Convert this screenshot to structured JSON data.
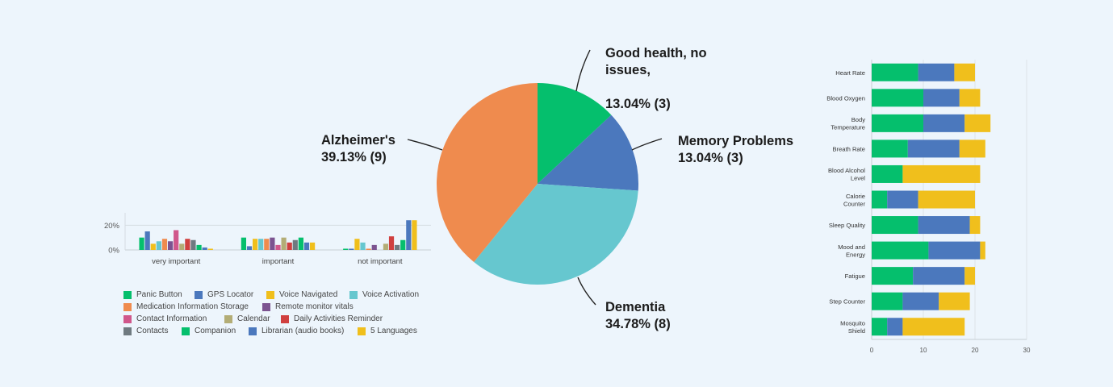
{
  "chart_data": [
    {
      "type": "pie",
      "slices": [
        {
          "label_lines": [
            "Good health, no",
            "issues,",
            "",
            "13.04% (3)"
          ],
          "value": 13.04,
          "count": 3,
          "color": "#05bf6d"
        },
        {
          "label_lines": [
            "Memory Problems",
            "13.04% (3)"
          ],
          "value": 13.04,
          "count": 3,
          "color": "#4b78bd"
        },
        {
          "label_lines": [
            "Dementia",
            "34.78% (8)"
          ],
          "value": 34.78,
          "count": 8,
          "color": "#66c7cf"
        },
        {
          "label_lines": [
            "Alzheimer's",
            "39.13% (9)"
          ],
          "value": 39.13,
          "count": 9,
          "color": "#ef8b4e"
        }
      ]
    },
    {
      "type": "bar",
      "categories": [
        "very important",
        "important",
        "not important"
      ],
      "ytick_labels": [
        "20%",
        "0%"
      ],
      "ylim": [
        0,
        30
      ],
      "series": [
        {
          "name": "Panic Button",
          "color": "#05bf6d",
          "values": [
            10,
            10,
            1
          ]
        },
        {
          "name": "GPS Locator",
          "color": "#4b78bd",
          "values": [
            15,
            3,
            1
          ]
        },
        {
          "name": "Voice Navigated",
          "color": "#f0bf1c",
          "values": [
            5,
            9,
            9
          ]
        },
        {
          "name": "Voice Activation",
          "color": "#66c7cf",
          "values": [
            7,
            9,
            6
          ]
        },
        {
          "name": "Medication Information Storage",
          "color": "#ef8b4e",
          "values": [
            9,
            9,
            1
          ]
        },
        {
          "name": "Remote monitor vitals",
          "color": "#7b5390",
          "values": [
            7,
            10,
            4
          ]
        },
        {
          "name": "Contact Information",
          "color": "#d0578b",
          "values": [
            16,
            4,
            0
          ]
        },
        {
          "name": "Calendar",
          "color": "#b3ad76",
          "values": [
            5,
            10,
            5
          ]
        },
        {
          "name": "Daily Activities Reminder",
          "color": "#d0403f",
          "values": [
            9,
            6,
            11
          ]
        },
        {
          "name": "Contacts",
          "color": "#6f7a80",
          "values": [
            8,
            8,
            4
          ]
        },
        {
          "name": "Companion",
          "color": "#05bf6d",
          "values": [
            4,
            10,
            8
          ]
        },
        {
          "name": "Librarian (audio books)",
          "color": "#4b78bd",
          "values": [
            2,
            6,
            24
          ]
        },
        {
          "name": "5 Languages",
          "color": "#f0bf1c",
          "values": [
            1,
            6,
            24
          ]
        }
      ]
    },
    {
      "type": "bar",
      "orientation": "horizontal",
      "stacked": true,
      "categories": [
        [
          "Heart Rate"
        ],
        [
          "Blood Oxygen"
        ],
        [
          "Body",
          "Temperature"
        ],
        [
          "Breath Rate"
        ],
        [
          "Blood Alcohol",
          "Level"
        ],
        [
          "Calorie",
          "Counter"
        ],
        [
          "Sleep Quality"
        ],
        [
          "Mood and",
          "Energy"
        ],
        [
          "Fatigue"
        ],
        [
          "Step Counter"
        ],
        [
          "Mosquito",
          "Shield"
        ]
      ],
      "xlim": [
        0,
        30
      ],
      "xticks": [
        "0",
        "10",
        "20",
        "30"
      ],
      "series": [
        {
          "color": "#05bf6d",
          "values": [
            9,
            10,
            10,
            7,
            6,
            3,
            9,
            11,
            8,
            6,
            3
          ]
        },
        {
          "color": "#4b78bd",
          "values": [
            7,
            7,
            8,
            10,
            0,
            6,
            10,
            10,
            10,
            7,
            3
          ]
        },
        {
          "color": "#f0bf1c",
          "values": [
            4,
            4,
            5,
            5,
            15,
            11,
            2,
            1,
            2,
            6,
            12
          ]
        }
      ]
    }
  ]
}
